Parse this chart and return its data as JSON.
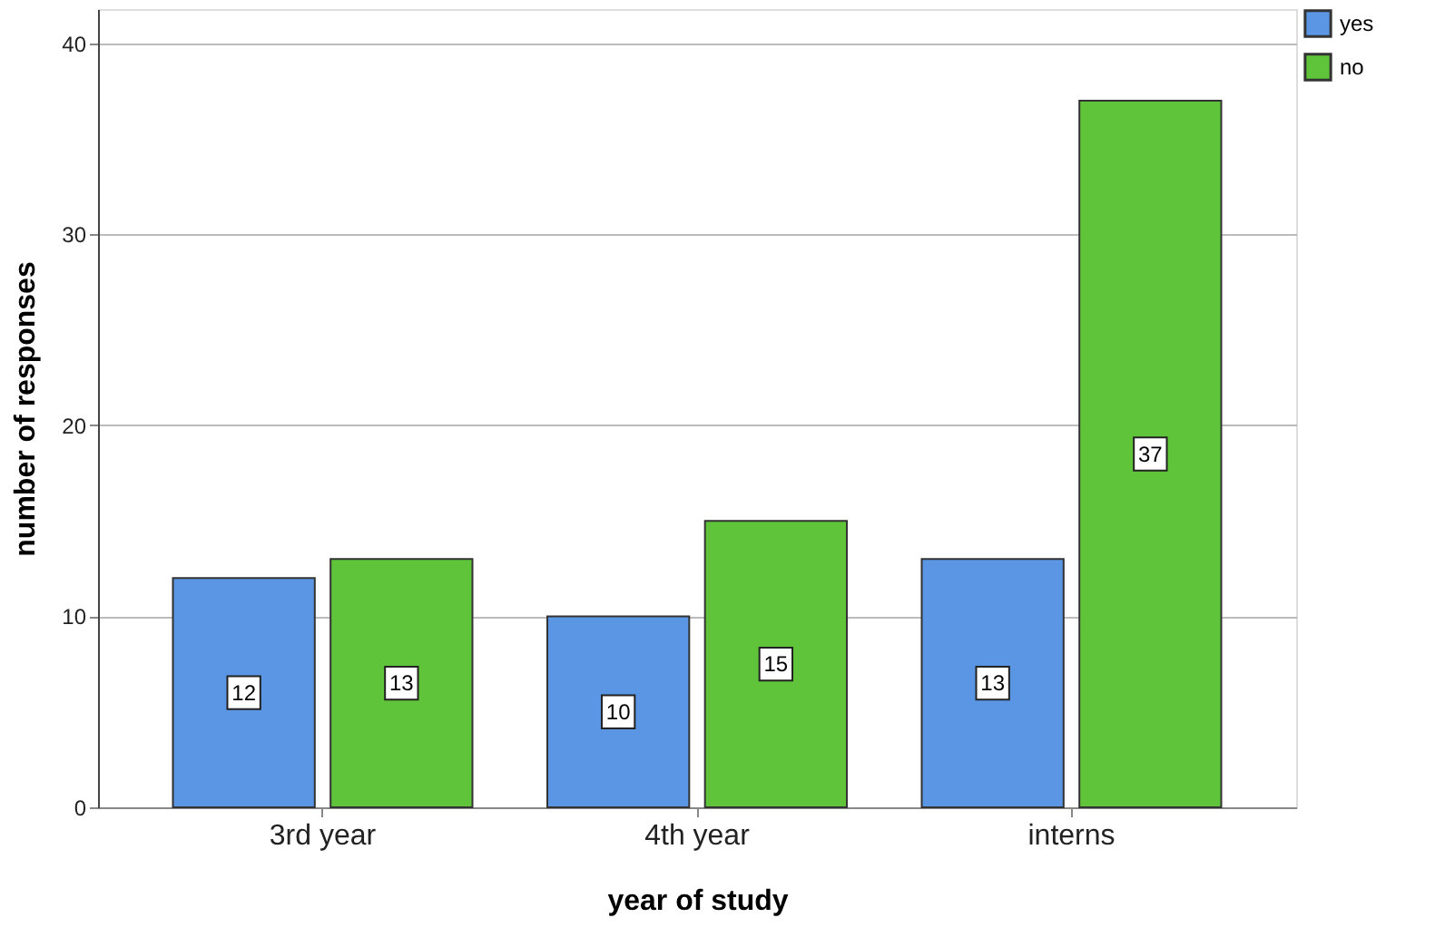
{
  "chart_data": {
    "type": "bar",
    "xlabel": "year of study",
    "ylabel": "number of responses",
    "categories": [
      "3rd year",
      "4th year",
      "interns"
    ],
    "series": [
      {
        "name": "yes",
        "color": "#5a96e3",
        "values": [
          12,
          10,
          13
        ]
      },
      {
        "name": "no",
        "color": "#5fc43a",
        "values": [
          13,
          15,
          37
        ]
      }
    ],
    "ylim": [
      0,
      41.8
    ],
    "yticks": [
      0,
      10,
      20,
      30,
      40
    ],
    "grid": "y",
    "legend": "top right",
    "data_labels": true
  }
}
